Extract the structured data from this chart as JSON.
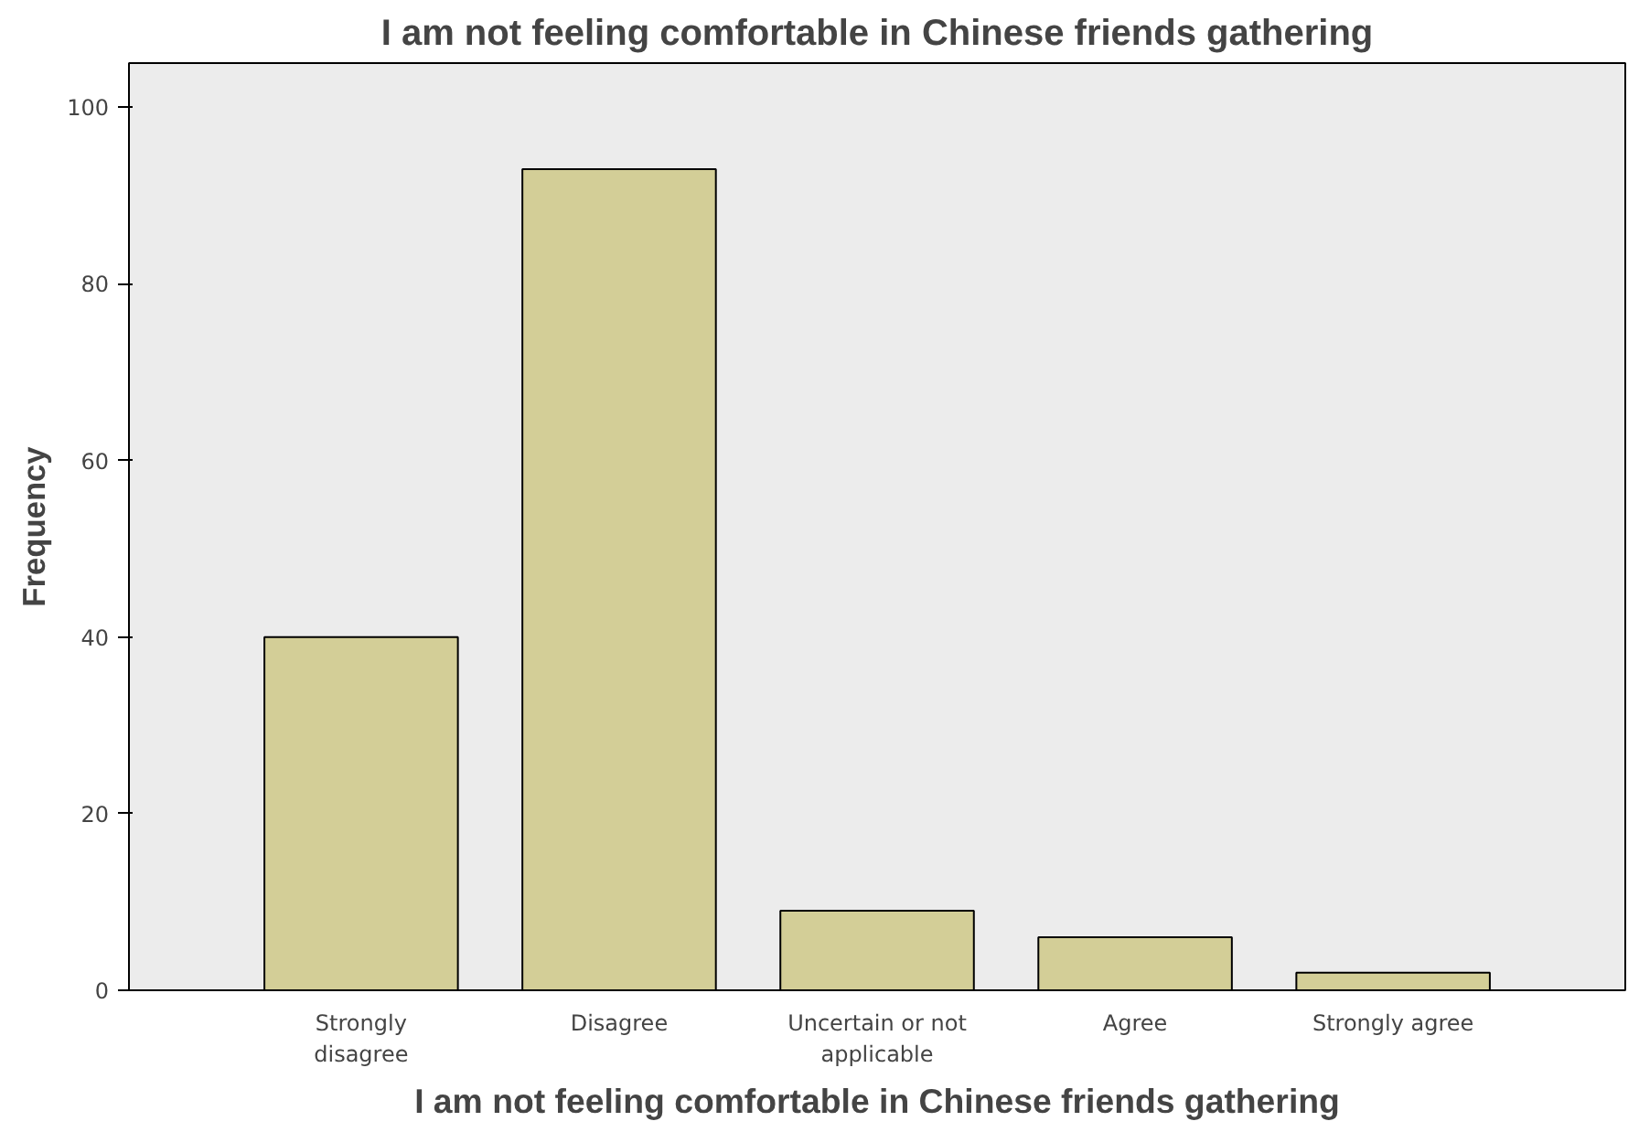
{
  "chart_data": {
    "type": "bar",
    "title": "I am not feeling comfortable in Chinese friends gathering",
    "xlabel": "I am not feeling comfortable in Chinese friends gathering",
    "ylabel": "Frequency",
    "categories": [
      "Strongly disagree",
      "Disagree",
      "Uncertain or not applicable",
      "Agree",
      "Strongly agree"
    ],
    "values": [
      40,
      93,
      9,
      6,
      2
    ],
    "color": "#d3ce97",
    "ylim": [
      0,
      105
    ],
    "yticks": [
      0,
      20,
      40,
      60,
      80,
      100
    ],
    "grid": false
  }
}
